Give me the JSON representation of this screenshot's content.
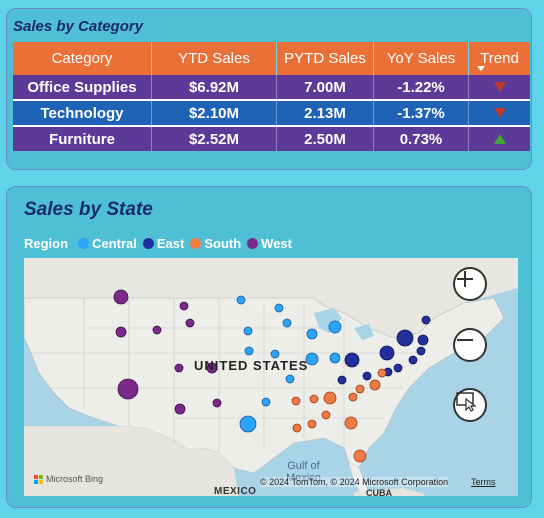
{
  "category_table": {
    "title": "Sales by Category",
    "columns": [
      "Category",
      "YTD Sales",
      "PYTD Sales",
      "YoY Sales",
      "Trend"
    ],
    "rows": [
      {
        "category": "Office Supplies",
        "ytd": "$6.92M",
        "pytd": "7.00M",
        "yoy": "-1.22%",
        "trend": "down"
      },
      {
        "category": "Technology",
        "ytd": "$2.10M",
        "pytd": "2.13M",
        "yoy": "-1.37%",
        "trend": "down"
      },
      {
        "category": "Furniture",
        "ytd": "$2.52M",
        "pytd": "2.50M",
        "yoy": "0.73%",
        "trend": "up"
      }
    ],
    "colors": {
      "header": "#ea7038",
      "row_purple": "#5e3a98",
      "row_blue": "#1e63b6",
      "down": "#c0392b",
      "up": "#3fa535"
    }
  },
  "state_map": {
    "title": "Sales by State",
    "legend_title": "Region",
    "regions": [
      {
        "name": "Central",
        "color": "#2aa5f5"
      },
      {
        "name": "East",
        "color": "#23309b"
      },
      {
        "name": "South",
        "color": "#ef7a45"
      },
      {
        "name": "West",
        "color": "#7a2a8a"
      }
    ],
    "labels": {
      "country": "UNITED STATES",
      "gulf_line1": "Gulf of",
      "gulf_line2": "Mexico",
      "mexico": "MEXICO",
      "cuba": "CUBA",
      "bing": "Microsoft Bing",
      "copyright": "© 2024 TomTom, © 2024 Microsoft Corporation",
      "terms": "Terms"
    },
    "controls": {
      "zoom_in_icon": "plus-icon",
      "zoom_out_icon": "minus-icon",
      "select_icon": "select-region-icon"
    }
  }
}
